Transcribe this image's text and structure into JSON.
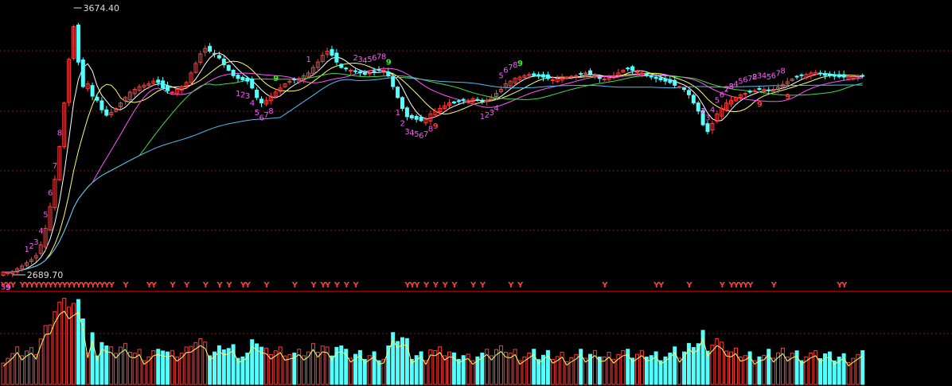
{
  "colors": {
    "background": "#000000",
    "up": "#ff3b3b",
    "down": "#54ffff",
    "grid": "#7a1f1f",
    "separator": "#b00000",
    "ma5": "#ffffff",
    "ma10": "#ffff66",
    "ma20": "#ff55ff",
    "ma30": "#44dd44",
    "ma60": "#55bbee",
    "td_buy": "#ff55ff",
    "td_buy9": "#ff3333",
    "td_sell": "#ff55ff",
    "td_sell9": "#33ee33",
    "y_marker": "#ff3b3b",
    "extreme_label": "#dddddd"
  },
  "chart_data": {
    "type": "candlestick",
    "price_axis": {
      "ylim": [
        2689.7,
        3674.4
      ],
      "grid": true
    },
    "extremes": {
      "high": "3674.40",
      "low": "2689.70"
    },
    "candles_close_estimates": [
      2700,
      2698,
      2702,
      2712,
      2722,
      2734,
      2745,
      2760,
      2800,
      2860,
      2940,
      3040,
      3160,
      3320,
      3480,
      3600,
      3470,
      3380,
      3390,
      3345,
      3330,
      3295,
      3275,
      3285,
      3300,
      3320,
      3340,
      3360,
      3370,
      3380,
      3385,
      3390,
      3400,
      3395,
      3375,
      3365,
      3360,
      3370,
      3380,
      3395,
      3430,
      3465,
      3500,
      3520,
      3510,
      3500,
      3485,
      3460,
      3440,
      3420,
      3410,
      3405,
      3400,
      3375,
      3340,
      3320,
      3330,
      3345,
      3360,
      3375,
      3390,
      3400,
      3405,
      3410,
      3420,
      3430,
      3450,
      3470,
      3495,
      3510,
      3495,
      3470,
      3450,
      3445,
      3440,
      3435,
      3430,
      3425,
      3430,
      3435,
      3440,
      3440,
      3420,
      3380,
      3340,
      3300,
      3270,
      3265,
      3260,
      3255,
      3260,
      3280,
      3290,
      3300,
      3310,
      3320,
      3320,
      3325,
      3330,
      3330,
      3335,
      3330,
      3325,
      3330,
      3340,
      3355,
      3370,
      3390,
      3400,
      3410,
      3415,
      3420,
      3425,
      3420,
      3418,
      3415,
      3410,
      3405,
      3408,
      3412,
      3415,
      3418,
      3420,
      3425,
      3430,
      3425,
      3420,
      3410,
      3408,
      3412,
      3420,
      3430,
      3440,
      3445,
      3440,
      3435,
      3430,
      3420,
      3415,
      3410,
      3405,
      3400,
      3395,
      3385,
      3380,
      3370,
      3350,
      3320,
      3290,
      3240,
      3215,
      3245,
      3280,
      3300,
      3320,
      3330,
      3340,
      3350,
      3355,
      3360,
      3365,
      3370,
      3370,
      3365,
      3370,
      3378,
      3388,
      3398,
      3408,
      3415,
      3420,
      3425,
      3430,
      3432,
      3428,
      3422,
      3420,
      3418,
      3416,
      3415,
      3416,
      3418,
      3420,
      3418
    ],
    "td_sequence_labels": [
      {
        "text": "5",
        "kind": "buy"
      },
      {
        "text": "9",
        "kind": "buy"
      },
      {
        "text": "1",
        "kind": "sell"
      },
      {
        "text": "2",
        "kind": "sell"
      },
      {
        "text": "3",
        "kind": "sell"
      },
      {
        "text": "4",
        "kind": "sell"
      },
      {
        "text": "5",
        "kind": "sell"
      },
      {
        "text": "6",
        "kind": "sell"
      },
      {
        "text": "7",
        "kind": "sell"
      },
      {
        "text": "8",
        "kind": "sell"
      },
      {
        "text": "2",
        "kind": "sell"
      },
      {
        "text": "3",
        "kind": "sell"
      },
      {
        "text": "4",
        "kind": "sell"
      },
      {
        "text": "5",
        "kind": "sell"
      },
      {
        "text": "6",
        "kind": "sell"
      },
      {
        "text": "7",
        "kind": "sell"
      },
      {
        "text": "8",
        "kind": "sell"
      },
      {
        "text": "9",
        "kind": "sell9"
      },
      {
        "text": "1",
        "kind": "buy"
      },
      {
        "text": "2",
        "kind": "buy"
      },
      {
        "text": "3",
        "kind": "buy"
      },
      {
        "text": "4",
        "kind": "buy"
      },
      {
        "text": "5",
        "kind": "buy"
      },
      {
        "text": "6",
        "kind": "buy"
      },
      {
        "text": "7",
        "kind": "buy"
      },
      {
        "text": "8",
        "kind": "buy"
      },
      {
        "text": "9",
        "kind": "buy9"
      },
      {
        "text": "2",
        "kind": "sell"
      },
      {
        "text": "3",
        "kind": "sell"
      },
      {
        "text": "4",
        "kind": "sell"
      },
      {
        "text": "5",
        "kind": "sell"
      },
      {
        "text": "6",
        "kind": "sell"
      },
      {
        "text": "7",
        "kind": "sell"
      },
      {
        "text": "8",
        "kind": "sell"
      },
      {
        "text": "2",
        "kind": "sell"
      },
      {
        "text": "3",
        "kind": "sell"
      },
      {
        "text": "4",
        "kind": "sell"
      },
      {
        "text": "5",
        "kind": "sell"
      },
      {
        "text": "6",
        "kind": "sell"
      },
      {
        "text": "7",
        "kind": "sell"
      },
      {
        "text": "8",
        "kind": "sell"
      },
      {
        "text": "9",
        "kind": "buy9"
      },
      {
        "text": "1",
        "kind": "buy"
      },
      {
        "text": "2",
        "kind": "buy"
      },
      {
        "text": "3",
        "kind": "buy"
      },
      {
        "text": "4",
        "kind": "buy"
      },
      {
        "text": "5",
        "kind": "sell"
      },
      {
        "text": "6",
        "kind": "sell"
      },
      {
        "text": "7",
        "kind": "sell"
      },
      {
        "text": "8",
        "kind": "sell"
      },
      {
        "text": "9",
        "kind": "sell9"
      },
      {
        "text": "1",
        "kind": "buy"
      },
      {
        "text": "2",
        "kind": "buy"
      },
      {
        "text": "3",
        "kind": "buy"
      },
      {
        "text": "4",
        "kind": "buy"
      },
      {
        "text": "5",
        "kind": "buy"
      },
      {
        "text": "6",
        "kind": "buy"
      },
      {
        "text": "7",
        "kind": "buy"
      },
      {
        "text": "8",
        "kind": "buy"
      },
      {
        "text": "9",
        "kind": "sell9"
      },
      {
        "text": "1",
        "kind": "sell"
      },
      {
        "text": "2",
        "kind": "sell"
      },
      {
        "text": "3",
        "kind": "sell"
      },
      {
        "text": "4",
        "kind": "sell"
      },
      {
        "text": "5",
        "kind": "sell"
      },
      {
        "text": "6",
        "kind": "sell"
      },
      {
        "text": "7",
        "kind": "sell"
      },
      {
        "text": "8",
        "kind": "sell"
      },
      {
        "text": "9",
        "kind": "buy9"
      }
    ],
    "y_marker_text": "Y",
    "moving_averages": [
      "ma5",
      "ma10",
      "ma20",
      "ma30",
      "ma60"
    ],
    "volume": {
      "shown": true
    }
  }
}
